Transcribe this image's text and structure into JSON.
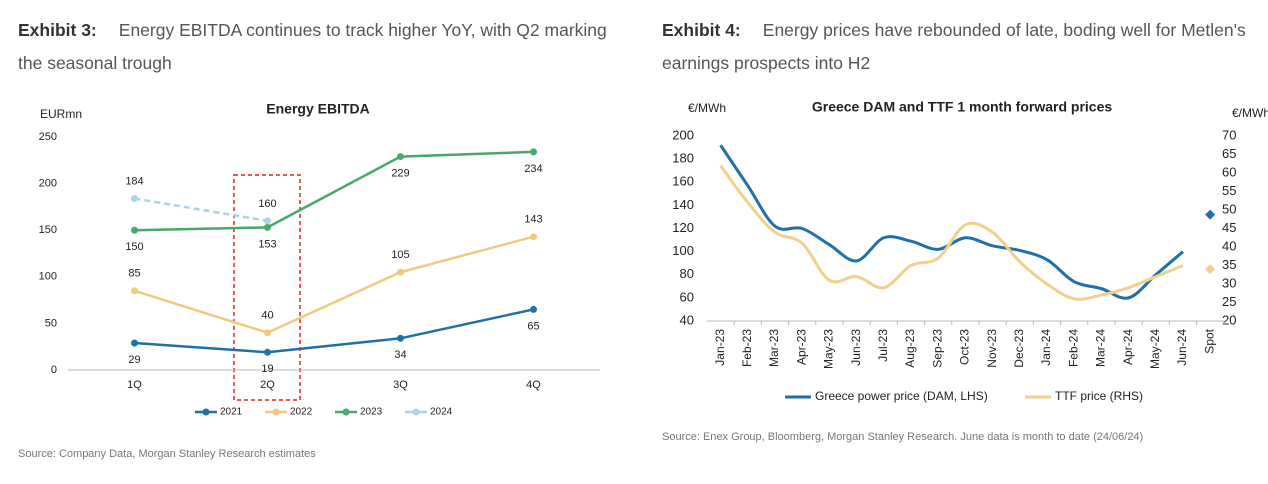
{
  "exhibits": [
    {
      "label": "Exhibit 3:",
      "title": "Energy EBITDA continues to track higher YoY, with Q2 marking the seasonal trough",
      "source": "Source: Company Data, Morgan Stanley Research estimates"
    },
    {
      "label": "Exhibit 4:",
      "title": "Energy prices have rebounded of late, boding well for Metlen's earnings prospects into H2",
      "source": "Source: Enex Group, Bloomberg, Morgan Stanley Research. June data is month to date (24/06/24)"
    }
  ],
  "chart_data": [
    {
      "type": "line",
      "title": "Energy EBITDA",
      "y_label": "EURmn",
      "categories": [
        "1Q",
        "2Q",
        "3Q",
        "4Q"
      ],
      "ylim": [
        0,
        250
      ],
      "yticks": [
        0,
        50,
        100,
        150,
        200,
        250
      ],
      "markers": true,
      "data_labels": true,
      "legend": "bottom",
      "series": [
        {
          "name": "2021",
          "color": "#1f6fa8",
          "values": [
            29,
            19,
            34,
            65
          ]
        },
        {
          "name": "2022",
          "color": "#eecb7c",
          "values": [
            85,
            40,
            105,
            143
          ]
        },
        {
          "name": "2023",
          "color": "#4aa86a",
          "values": [
            150,
            153,
            229,
            234
          ]
        },
        {
          "name": "2024",
          "color": "#a8d4e6",
          "dash": true,
          "values": [
            184,
            160,
            null,
            null
          ]
        }
      ]
    },
    {
      "type": "line",
      "title": "Greece DAM and TTF 1 month forward prices",
      "y_label": "€/MWh",
      "y2_label": "€/MWh",
      "categories": [
        "Jan-23",
        "Feb-23",
        "Mar-23",
        "Apr-23",
        "May-23",
        "Jun-23",
        "Jul-23",
        "Aug-23",
        "Sep-23",
        "Oct-23",
        "Nov-23",
        "Dec-23",
        "Jan-24",
        "Feb-24",
        "Mar-24",
        "Apr-24",
        "May-24",
        "Jun-24"
      ],
      "spot_label": "Spot",
      "ylim": [
        40,
        200
      ],
      "yticks": [
        40,
        60,
        80,
        100,
        120,
        140,
        160,
        180,
        200
      ],
      "y2lim": [
        20,
        70
      ],
      "y2ticks": [
        20,
        25,
        30,
        35,
        40,
        45,
        50,
        55,
        60,
        65,
        70
      ],
      "smooth": true,
      "markers": false,
      "legend": "bottom",
      "series": [
        {
          "name": "Greece power price (DAM, LHS)",
          "color": "#1f6fa8",
          "values": [
            192,
            157,
            122,
            120,
            106,
            92,
            112,
            109,
            102,
            112,
            105,
            101,
            93,
            74,
            68,
            60,
            80,
            100
          ],
          "spot": 132
        },
        {
          "name": "TTF price (RHS)",
          "color": "#f0d08a",
          "axis": "y2",
          "values": [
            62,
            52,
            44,
            41,
            31,
            32,
            29,
            35,
            37,
            46,
            44,
            36,
            30,
            26,
            27,
            29,
            32,
            35
          ],
          "spot": 34
        }
      ]
    }
  ]
}
